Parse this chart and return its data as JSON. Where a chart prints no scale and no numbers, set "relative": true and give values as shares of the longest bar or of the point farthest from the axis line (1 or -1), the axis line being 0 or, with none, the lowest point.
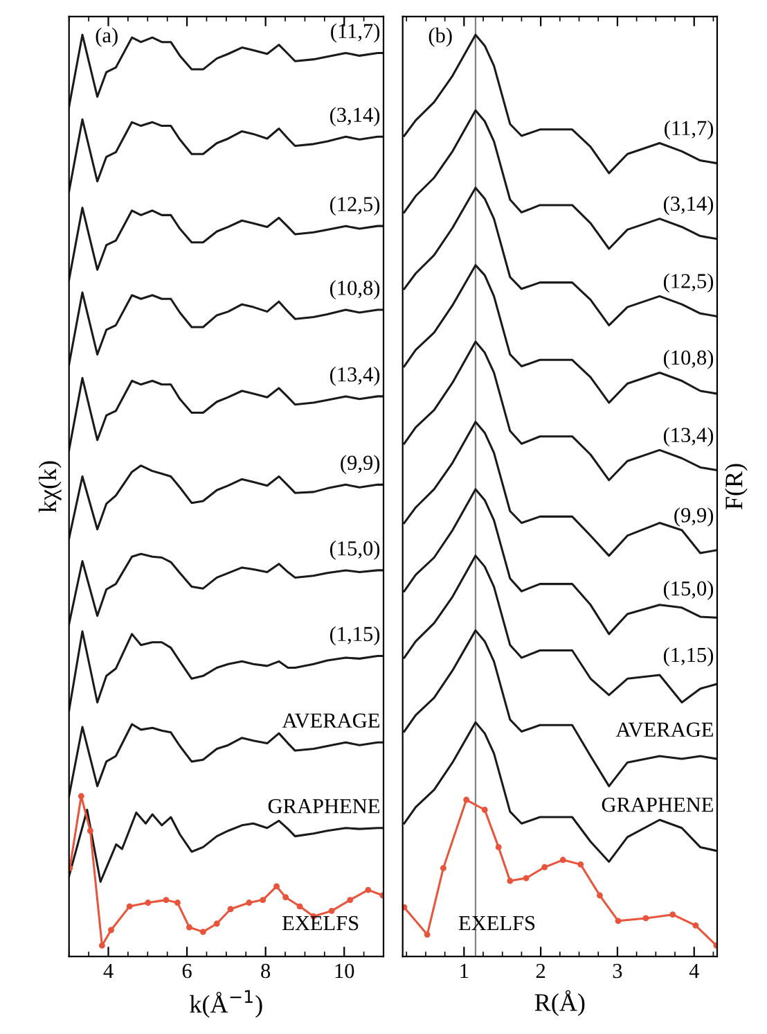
{
  "chart_data": [
    {
      "type": "line",
      "relative": true,
      "xlabel": "k(Å$^{−1}$)",
      "ylabel": "kχ(k)",
      "xlim": [
        3,
        11
      ],
      "xticks": [
        4,
        6,
        8,
        10
      ],
      "tick_labels": "x",
      "legend": false,
      "grid": false,
      "annotations": [
        "(a)"
      ],
      "x": [
        3.0,
        3.34,
        3.72,
        3.95,
        4.19,
        4.6,
        4.83,
        5.12,
        5.36,
        5.59,
        5.82,
        6.12,
        6.41,
        6.76,
        7.05,
        7.4,
        7.69,
        8.04,
        8.34,
        8.57,
        8.75,
        9.22,
        9.57,
        10.04,
        10.39,
        10.85,
        11.0
      ],
      "series": [
        {
          "name": "(11,7)",
          "color": "#1a1a1a",
          "values": [
            0.921,
            1.0,
            0.932,
            0.959,
            0.964,
            0.997,
            0.992,
            0.997,
            0.992,
            0.992,
            0.977,
            0.962,
            0.962,
            0.974,
            0.979,
            0.986,
            0.983,
            0.979,
            0.989,
            0.979,
            0.971,
            0.973,
            0.976,
            0.98,
            0.977,
            0.98,
            0.98
          ]
        },
        {
          "name": "(3,14)",
          "color": "#1a1a1a",
          "values": [
            0.828,
            0.907,
            0.839,
            0.866,
            0.871,
            0.904,
            0.9,
            0.904,
            0.9,
            0.9,
            0.885,
            0.869,
            0.869,
            0.881,
            0.886,
            0.894,
            0.891,
            0.886,
            0.897,
            0.886,
            0.878,
            0.88,
            0.883,
            0.888,
            0.885,
            0.888,
            0.888
          ]
        },
        {
          "name": "(12,5)",
          "color": "#1a1a1a",
          "values": [
            0.731,
            0.81,
            0.742,
            0.769,
            0.774,
            0.807,
            0.802,
            0.807,
            0.802,
            0.802,
            0.787,
            0.772,
            0.772,
            0.784,
            0.789,
            0.796,
            0.793,
            0.789,
            0.799,
            0.789,
            0.781,
            0.783,
            0.786,
            0.79,
            0.787,
            0.79,
            0.79
          ]
        },
        {
          "name": "(10,8)",
          "color": "#1a1a1a",
          "values": [
            0.638,
            0.717,
            0.649,
            0.676,
            0.681,
            0.714,
            0.71,
            0.714,
            0.71,
            0.71,
            0.695,
            0.679,
            0.679,
            0.692,
            0.696,
            0.704,
            0.701,
            0.696,
            0.707,
            0.696,
            0.688,
            0.69,
            0.693,
            0.698,
            0.695,
            0.698,
            0.698
          ]
        },
        {
          "name": "(13,4)",
          "color": "#1a1a1a",
          "values": [
            0.544,
            0.623,
            0.555,
            0.582,
            0.587,
            0.62,
            0.616,
            0.62,
            0.616,
            0.616,
            0.6,
            0.585,
            0.585,
            0.597,
            0.602,
            0.609,
            0.606,
            0.602,
            0.612,
            0.602,
            0.594,
            0.596,
            0.599,
            0.603,
            0.6,
            0.603,
            0.603
          ]
        },
        {
          "name": "(9,9)",
          "color": "#1a1a1a",
          "values": [
            0.447,
            0.515,
            0.457,
            0.485,
            0.494,
            0.52,
            0.527,
            0.521,
            0.518,
            0.515,
            0.503,
            0.486,
            0.488,
            0.5,
            0.505,
            0.512,
            0.509,
            0.505,
            0.515,
            0.505,
            0.497,
            0.498,
            0.502,
            0.506,
            0.503,
            0.506,
            0.506
          ]
        },
        {
          "name": "(15,0)",
          "color": "#1a1a1a",
          "values": [
            0.353,
            0.422,
            0.362,
            0.391,
            0.397,
            0.427,
            0.43,
            0.427,
            0.426,
            0.421,
            0.409,
            0.394,
            0.392,
            0.404,
            0.409,
            0.415,
            0.413,
            0.41,
            0.419,
            0.41,
            0.404,
            0.406,
            0.409,
            0.412,
            0.41,
            0.412,
            0.412
          ]
        },
        {
          "name": "(1,15)",
          "color": "#1a1a1a",
          "values": [
            0.258,
            0.345,
            0.267,
            0.296,
            0.304,
            0.342,
            0.33,
            0.333,
            0.333,
            0.327,
            0.312,
            0.293,
            0.296,
            0.305,
            0.309,
            0.312,
            0.309,
            0.307,
            0.312,
            0.305,
            0.305,
            0.309,
            0.313,
            0.316,
            0.315,
            0.318,
            0.318
          ]
        },
        {
          "name": "AVERAGE",
          "color": "#1a1a1a",
          "values": [
            0.164,
            0.24,
            0.175,
            0.202,
            0.208,
            0.243,
            0.237,
            0.239,
            0.236,
            0.234,
            0.219,
            0.202,
            0.204,
            0.216,
            0.22,
            0.228,
            0.225,
            0.222,
            0.233,
            0.222,
            0.214,
            0.216,
            0.219,
            0.223,
            0.22,
            0.223,
            0.223
          ]
        },
        {
          "name": "GRAPHENE",
          "color": "#1a1a1a",
          "x": [
            3.0,
            3.46,
            3.8,
            4.2,
            4.35,
            4.71,
            4.95,
            5.12,
            5.36,
            5.59,
            5.82,
            6.12,
            6.41,
            6.76,
            7.05,
            7.4,
            7.69,
            8.04,
            8.34,
            8.57,
            8.75,
            9.22,
            9.57,
            10.04,
            10.39,
            10.85,
            11.0
          ],
          "values": [
            0.076,
            0.149,
            0.07,
            0.111,
            0.106,
            0.146,
            0.134,
            0.144,
            0.132,
            0.141,
            0.122,
            0.103,
            0.108,
            0.12,
            0.126,
            0.132,
            0.134,
            0.129,
            0.137,
            0.128,
            0.12,
            0.123,
            0.126,
            0.129,
            0.128,
            0.129,
            0.129
          ]
        },
        {
          "name": "EXELFS",
          "color": "#e8543c",
          "marker": "circle",
          "x": [
            3.02,
            3.31,
            3.54,
            3.84,
            4.07,
            4.54,
            5.01,
            5.47,
            5.76,
            6.06,
            6.41,
            6.76,
            7.11,
            7.58,
            7.93,
            8.28,
            8.51,
            8.87,
            9.22,
            9.68,
            10.15,
            10.61,
            10.98
          ],
          "values": [
            0.085,
            0.164,
            0.126,
            0.0,
            0.017,
            0.043,
            0.047,
            0.05,
            0.047,
            0.02,
            0.015,
            0.024,
            0.04,
            0.047,
            0.05,
            0.065,
            0.053,
            0.043,
            0.032,
            0.038,
            0.05,
            0.061,
            0.055
          ]
        }
      ]
    },
    {
      "type": "line",
      "relative": true,
      "xlabel": "R(Å)",
      "ylabel": "F(R)",
      "xlim": [
        0.2,
        4.3
      ],
      "xticks": [
        1,
        2,
        3,
        4
      ],
      "tick_labels": "x",
      "legend": false,
      "grid": false,
      "annotations": [
        "(b)"
      ],
      "ref_lines": [
        {
          "axis": "x",
          "value": 1.15,
          "color": "#808080"
        }
      ],
      "x": [
        0.22,
        0.37,
        0.61,
        0.85,
        1.15,
        1.27,
        1.39,
        1.6,
        1.75,
        1.99,
        2.41,
        2.65,
        2.89,
        3.13,
        3.55,
        3.84,
        4.08,
        4.29
      ],
      "series": [
        {
          "name": "(11,7)",
          "color": "#1a1a1a",
          "values": [
            0.889,
            0.906,
            0.926,
            0.955,
            1.0,
            0.988,
            0.966,
            0.902,
            0.889,
            0.896,
            0.896,
            0.877,
            0.848,
            0.869,
            0.881,
            0.872,
            0.862,
            0.859
          ]
        },
        {
          "name": "(3,14)",
          "color": "#1a1a1a",
          "values": [
            0.805,
            0.823,
            0.843,
            0.872,
            0.917,
            0.905,
            0.883,
            0.819,
            0.805,
            0.813,
            0.813,
            0.793,
            0.765,
            0.786,
            0.798,
            0.789,
            0.779,
            0.776
          ]
        },
        {
          "name": "(12,5)",
          "color": "#1a1a1a",
          "values": [
            0.721,
            0.738,
            0.758,
            0.788,
            0.832,
            0.82,
            0.798,
            0.734,
            0.721,
            0.728,
            0.728,
            0.709,
            0.681,
            0.701,
            0.713,
            0.704,
            0.694,
            0.691
          ]
        },
        {
          "name": "(10,8)",
          "color": "#1a1a1a",
          "values": [
            0.636,
            0.654,
            0.673,
            0.703,
            0.747,
            0.736,
            0.713,
            0.649,
            0.636,
            0.643,
            0.643,
            0.624,
            0.596,
            0.617,
            0.629,
            0.62,
            0.609,
            0.606
          ]
        },
        {
          "name": "(13,4)",
          "color": "#1a1a1a",
          "values": [
            0.551,
            0.569,
            0.588,
            0.618,
            0.663,
            0.651,
            0.629,
            0.565,
            0.551,
            0.559,
            0.559,
            0.539,
            0.511,
            0.532,
            0.544,
            0.535,
            0.525,
            0.522
          ]
        },
        {
          "name": "(9,9)",
          "color": "#1a1a1a",
          "values": [
            0.464,
            0.481,
            0.501,
            0.53,
            0.575,
            0.563,
            0.541,
            0.477,
            0.464,
            0.471,
            0.471,
            0.45,
            0.428,
            0.45,
            0.464,
            0.456,
            0.431,
            0.434
          ]
        },
        {
          "name": "(15,0)",
          "color": "#1a1a1a",
          "values": [
            0.389,
            0.407,
            0.426,
            0.456,
            0.501,
            0.489,
            0.467,
            0.403,
            0.389,
            0.397,
            0.397,
            0.374,
            0.342,
            0.364,
            0.374,
            0.371,
            0.361,
            0.36
          ]
        },
        {
          "name": "(1,15)",
          "color": "#1a1a1a",
          "values": [
            0.316,
            0.334,
            0.354,
            0.383,
            0.428,
            0.416,
            0.394,
            0.33,
            0.316,
            0.324,
            0.324,
            0.293,
            0.275,
            0.293,
            0.297,
            0.267,
            0.282,
            0.287
          ]
        },
        {
          "name": "AVERAGE",
          "color": "#1a1a1a",
          "values": [
            0.235,
            0.253,
            0.272,
            0.302,
            0.346,
            0.334,
            0.312,
            0.248,
            0.235,
            0.242,
            0.242,
            0.208,
            0.175,
            0.201,
            0.208,
            0.205,
            0.208,
            0.205
          ]
        },
        {
          "name": "GRAPHENE",
          "color": "#1a1a1a",
          "values": [
            0.134,
            0.152,
            0.171,
            0.201,
            0.245,
            0.233,
            0.211,
            0.147,
            0.134,
            0.141,
            0.141,
            0.114,
            0.092,
            0.119,
            0.138,
            0.129,
            0.108,
            0.104
          ]
        },
        {
          "name": "EXELFS",
          "color": "#e8543c",
          "marker": "circle",
          "x": [
            0.22,
            0.52,
            0.73,
            1.03,
            1.27,
            1.45,
            1.6,
            1.81,
            2.05,
            2.29,
            2.52,
            2.77,
            3.01,
            3.37,
            3.72,
            4.02,
            4.29
          ],
          "values": [
            0.042,
            0.012,
            0.085,
            0.16,
            0.149,
            0.108,
            0.071,
            0.074,
            0.086,
            0.094,
            0.089,
            0.055,
            0.027,
            0.03,
            0.034,
            0.022,
            0.0
          ]
        }
      ]
    }
  ]
}
